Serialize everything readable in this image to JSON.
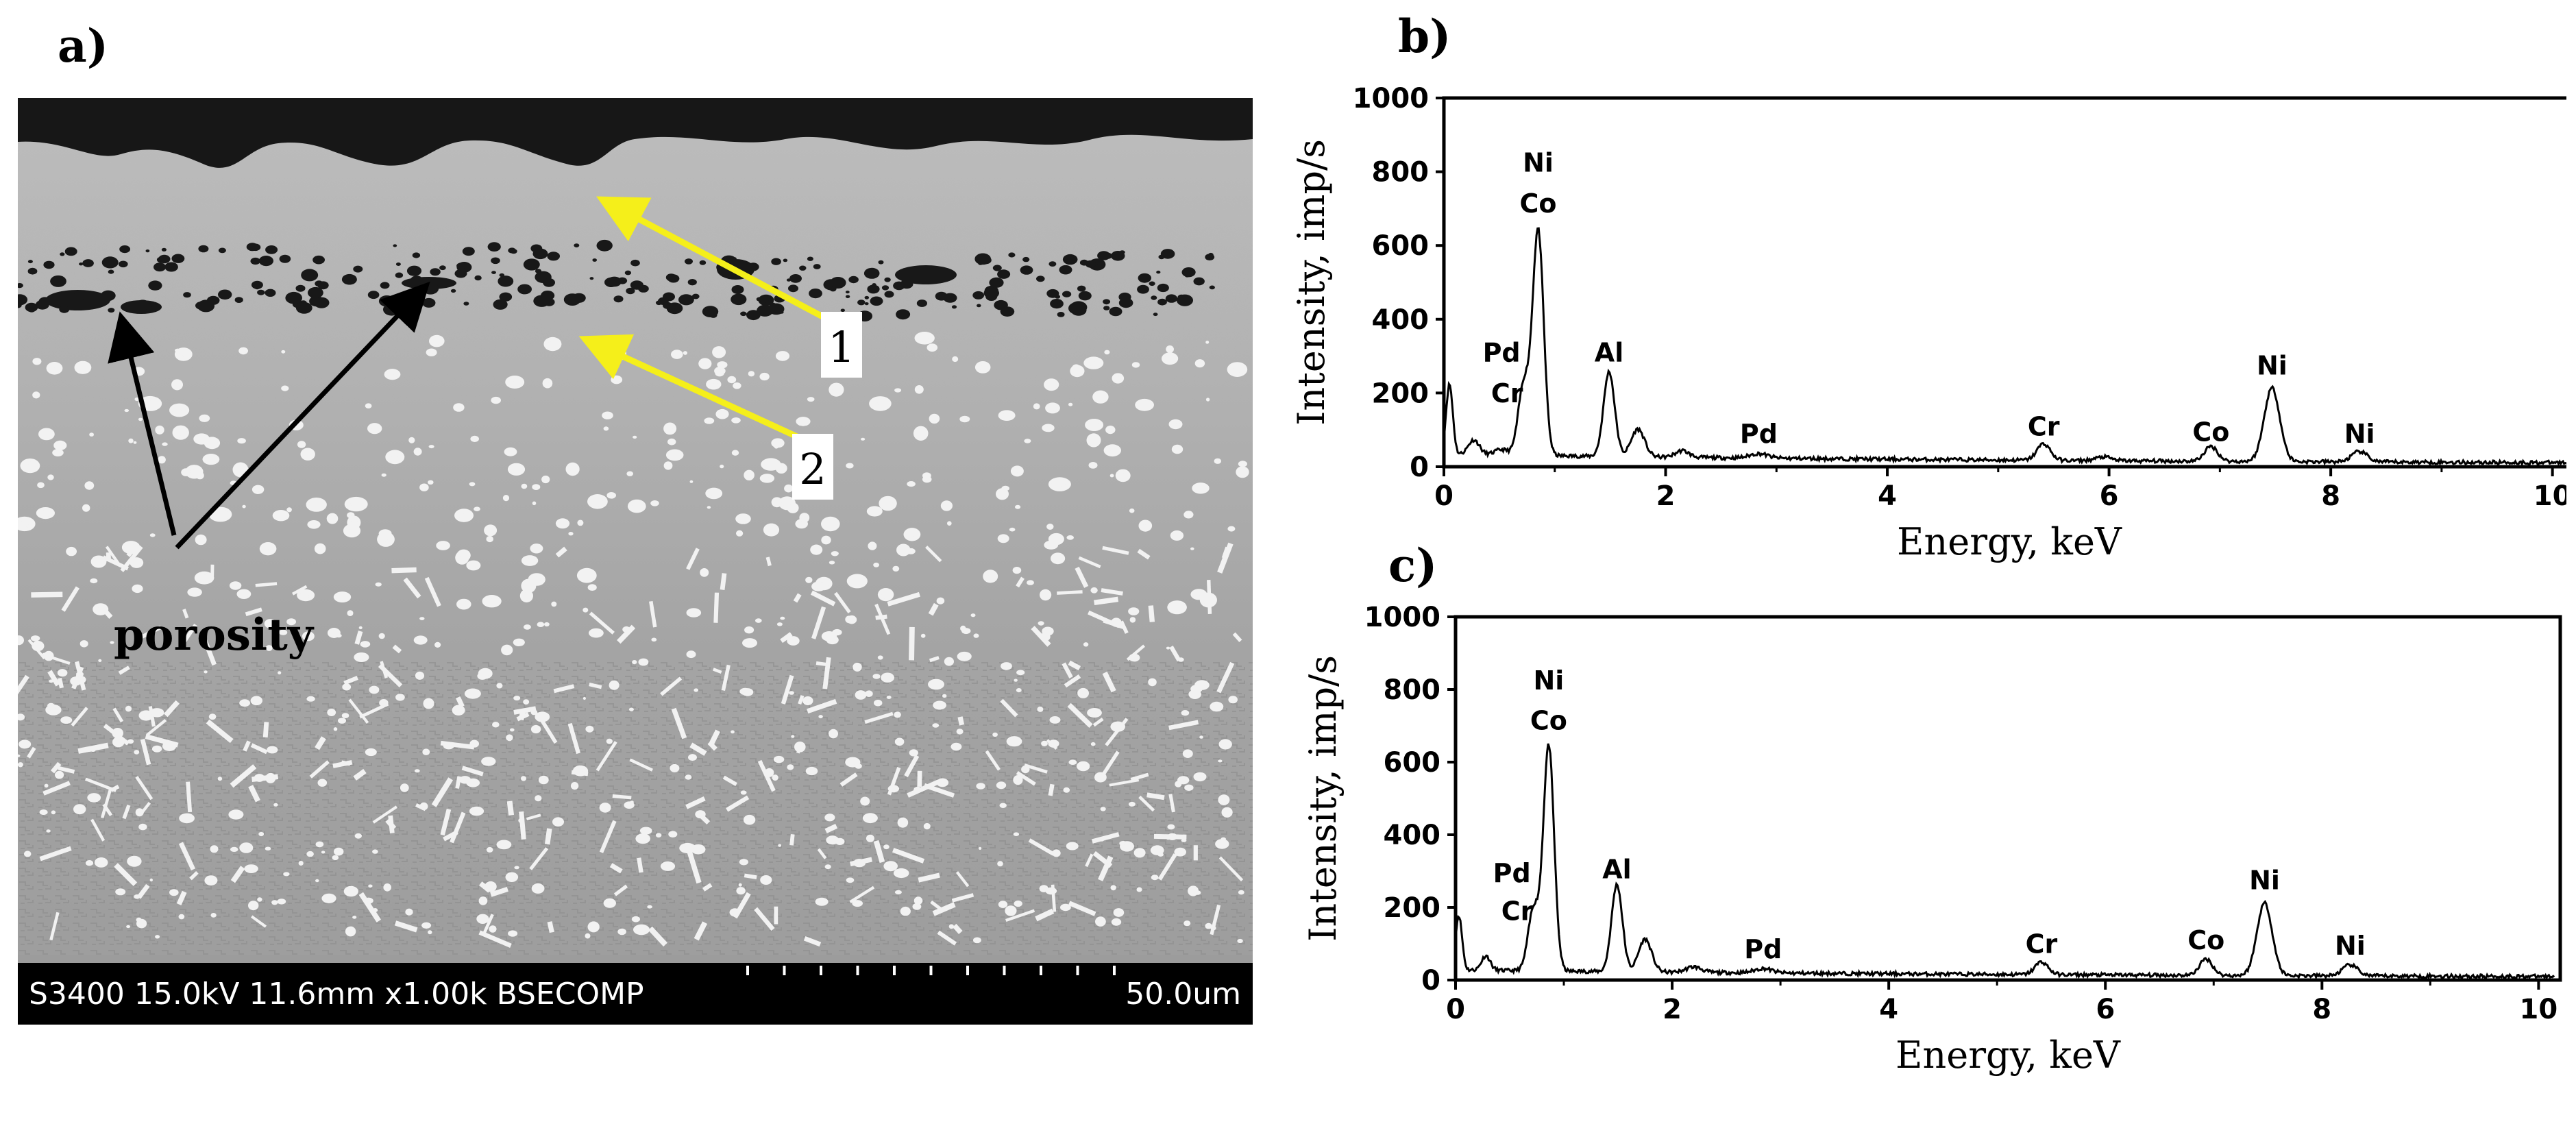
{
  "panels": {
    "a": {
      "label": "a)",
      "sem_info": "S3400 15.0kV 11.6mm x1.00k BSECOMP",
      "scale_bar": "50.0um",
      "annotation": "porosity",
      "markers": [
        "1",
        "2"
      ],
      "colors": {
        "arrow_yellow": "#f5ef1a",
        "arrow_black": "#000000",
        "matrix": "#a4a4a4",
        "precipitate": "#f2f2f2"
      }
    },
    "b": {
      "label": "b)"
    },
    "c": {
      "label": "c)"
    }
  },
  "chart_data": [
    {
      "type": "line",
      "panel": "b",
      "xlabel": "Energy, keV",
      "ylabel": "Intensity, imp/s",
      "xlim": [
        0,
        10.2
      ],
      "ylim": [
        0,
        1000
      ],
      "xticks": [
        0,
        2,
        4,
        6,
        8,
        10
      ],
      "yticks": [
        0,
        200,
        400,
        600,
        800,
        1000
      ],
      "baseline": 28,
      "peaks": [
        {
          "x": 0.05,
          "y": 190,
          "w": 0.03
        },
        {
          "x": 0.27,
          "y": 40,
          "w": 0.05
        },
        {
          "x": 0.52,
          "y": 15,
          "w": 0.06
        },
        {
          "x": 0.72,
          "y": 190,
          "w": 0.05
        },
        {
          "x": 0.85,
          "y": 610,
          "w": 0.05
        },
        {
          "x": 1.49,
          "y": 230,
          "w": 0.05
        },
        {
          "x": 1.75,
          "y": 75,
          "w": 0.06
        },
        {
          "x": 2.15,
          "y": 18,
          "w": 0.06
        },
        {
          "x": 2.84,
          "y": 12,
          "w": 0.08
        },
        {
          "x": 5.41,
          "y": 45,
          "w": 0.06
        },
        {
          "x": 5.95,
          "y": 10,
          "w": 0.07
        },
        {
          "x": 6.92,
          "y": 40,
          "w": 0.06
        },
        {
          "x": 7.47,
          "y": 200,
          "w": 0.07
        },
        {
          "x": 8.26,
          "y": 28,
          "w": 0.07
        }
      ],
      "labels": [
        {
          "text": "Ni",
          "x": 0.85,
          "y": 800
        },
        {
          "text": "Co",
          "x": 0.85,
          "y": 690
        },
        {
          "text": "Pd",
          "x": 0.52,
          "y": 285
        },
        {
          "text": "Cr",
          "x": 0.57,
          "y": 175
        },
        {
          "text": "Al",
          "x": 1.49,
          "y": 285
        },
        {
          "text": "Pd",
          "x": 2.84,
          "y": 65
        },
        {
          "text": "Cr",
          "x": 5.41,
          "y": 85
        },
        {
          "text": "Co",
          "x": 6.92,
          "y": 70
        },
        {
          "text": "Ni",
          "x": 7.47,
          "y": 250
        },
        {
          "text": "Ni",
          "x": 8.26,
          "y": 65
        }
      ]
    },
    {
      "type": "line",
      "panel": "c",
      "xlabel": "Energy, keV",
      "ylabel": "Intensity, imp/s",
      "xlim": [
        0,
        10.2
      ],
      "ylim": [
        0,
        1000
      ],
      "xticks": [
        0,
        2,
        4,
        6,
        8,
        10
      ],
      "yticks": [
        0,
        200,
        400,
        600,
        800,
        1000
      ],
      "baseline": 22,
      "peaks": [
        {
          "x": 0.03,
          "y": 150,
          "w": 0.03
        },
        {
          "x": 0.28,
          "y": 40,
          "w": 0.04
        },
        {
          "x": 0.72,
          "y": 170,
          "w": 0.05
        },
        {
          "x": 0.86,
          "y": 620,
          "w": 0.05
        },
        {
          "x": 1.49,
          "y": 240,
          "w": 0.05
        },
        {
          "x": 1.75,
          "y": 90,
          "w": 0.06
        },
        {
          "x": 2.2,
          "y": 15,
          "w": 0.07
        },
        {
          "x": 2.84,
          "y": 12,
          "w": 0.08
        },
        {
          "x": 5.41,
          "y": 35,
          "w": 0.06
        },
        {
          "x": 6.93,
          "y": 45,
          "w": 0.06
        },
        {
          "x": 7.47,
          "y": 200,
          "w": 0.07
        },
        {
          "x": 8.26,
          "y": 30,
          "w": 0.07
        }
      ],
      "labels": [
        {
          "text": "Ni",
          "x": 0.86,
          "y": 800
        },
        {
          "text": "Co",
          "x": 0.86,
          "y": 690
        },
        {
          "text": "Pd",
          "x": 0.52,
          "y": 270
        },
        {
          "text": "Cr",
          "x": 0.57,
          "y": 165
        },
        {
          "text": "Al",
          "x": 1.49,
          "y": 280
        },
        {
          "text": "Pd",
          "x": 2.84,
          "y": 60
        },
        {
          "text": "Cr",
          "x": 5.41,
          "y": 75
        },
        {
          "text": "Co",
          "x": 6.93,
          "y": 85
        },
        {
          "text": "Ni",
          "x": 7.47,
          "y": 250
        },
        {
          "text": "Ni",
          "x": 8.26,
          "y": 70
        }
      ]
    }
  ]
}
